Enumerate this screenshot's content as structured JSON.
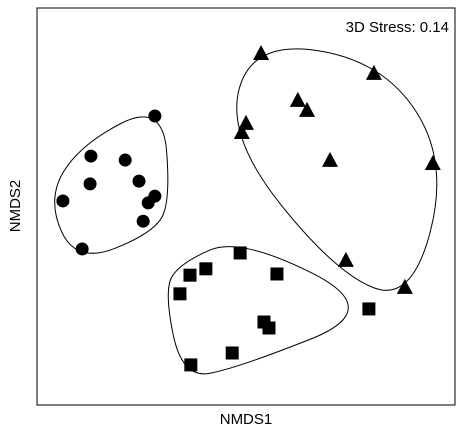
{
  "chart_data": {
    "type": "scatter",
    "xlabel": "NMDS1",
    "ylabel": "NMDS2",
    "annotation": "3D Stress: 0.14",
    "xlim": [
      0,
      100
    ],
    "ylim": [
      0,
      100
    ],
    "hulls": true,
    "series": [
      {
        "marker": "circle",
        "color": "#000000",
        "x": [
          28.2,
          12.9,
          21.1,
          12.7,
          24.4,
          28.2,
          26.6,
          6.2,
          25.4,
          10.8
        ],
        "values": [
          72.8,
          62.7,
          61.7,
          55.7,
          56.4,
          52.6,
          50.9,
          51.4,
          46.3,
          39.3
        ]
      },
      {
        "marker": "triangle",
        "color": "#000000",
        "x": [
          53.6,
          80.6,
          62.4,
          64.6,
          50.0,
          49.0,
          70.1,
          94.7,
          73.9,
          88.0
        ],
        "values": [
          88.4,
          83.4,
          76.6,
          74.1,
          70.8,
          68.5,
          61.5,
          60.7,
          36.3,
          29.5
        ]
      },
      {
        "marker": "square",
        "color": "#000000",
        "x": [
          48.6,
          40.4,
          36.6,
          57.4,
          34.2,
          79.4,
          54.3,
          55.5,
          46.7,
          36.8
        ],
        "values": [
          38.3,
          34.3,
          32.7,
          33.0,
          28.0,
          24.2,
          20.9,
          19.4,
          13.1,
          10.1
        ]
      }
    ]
  }
}
